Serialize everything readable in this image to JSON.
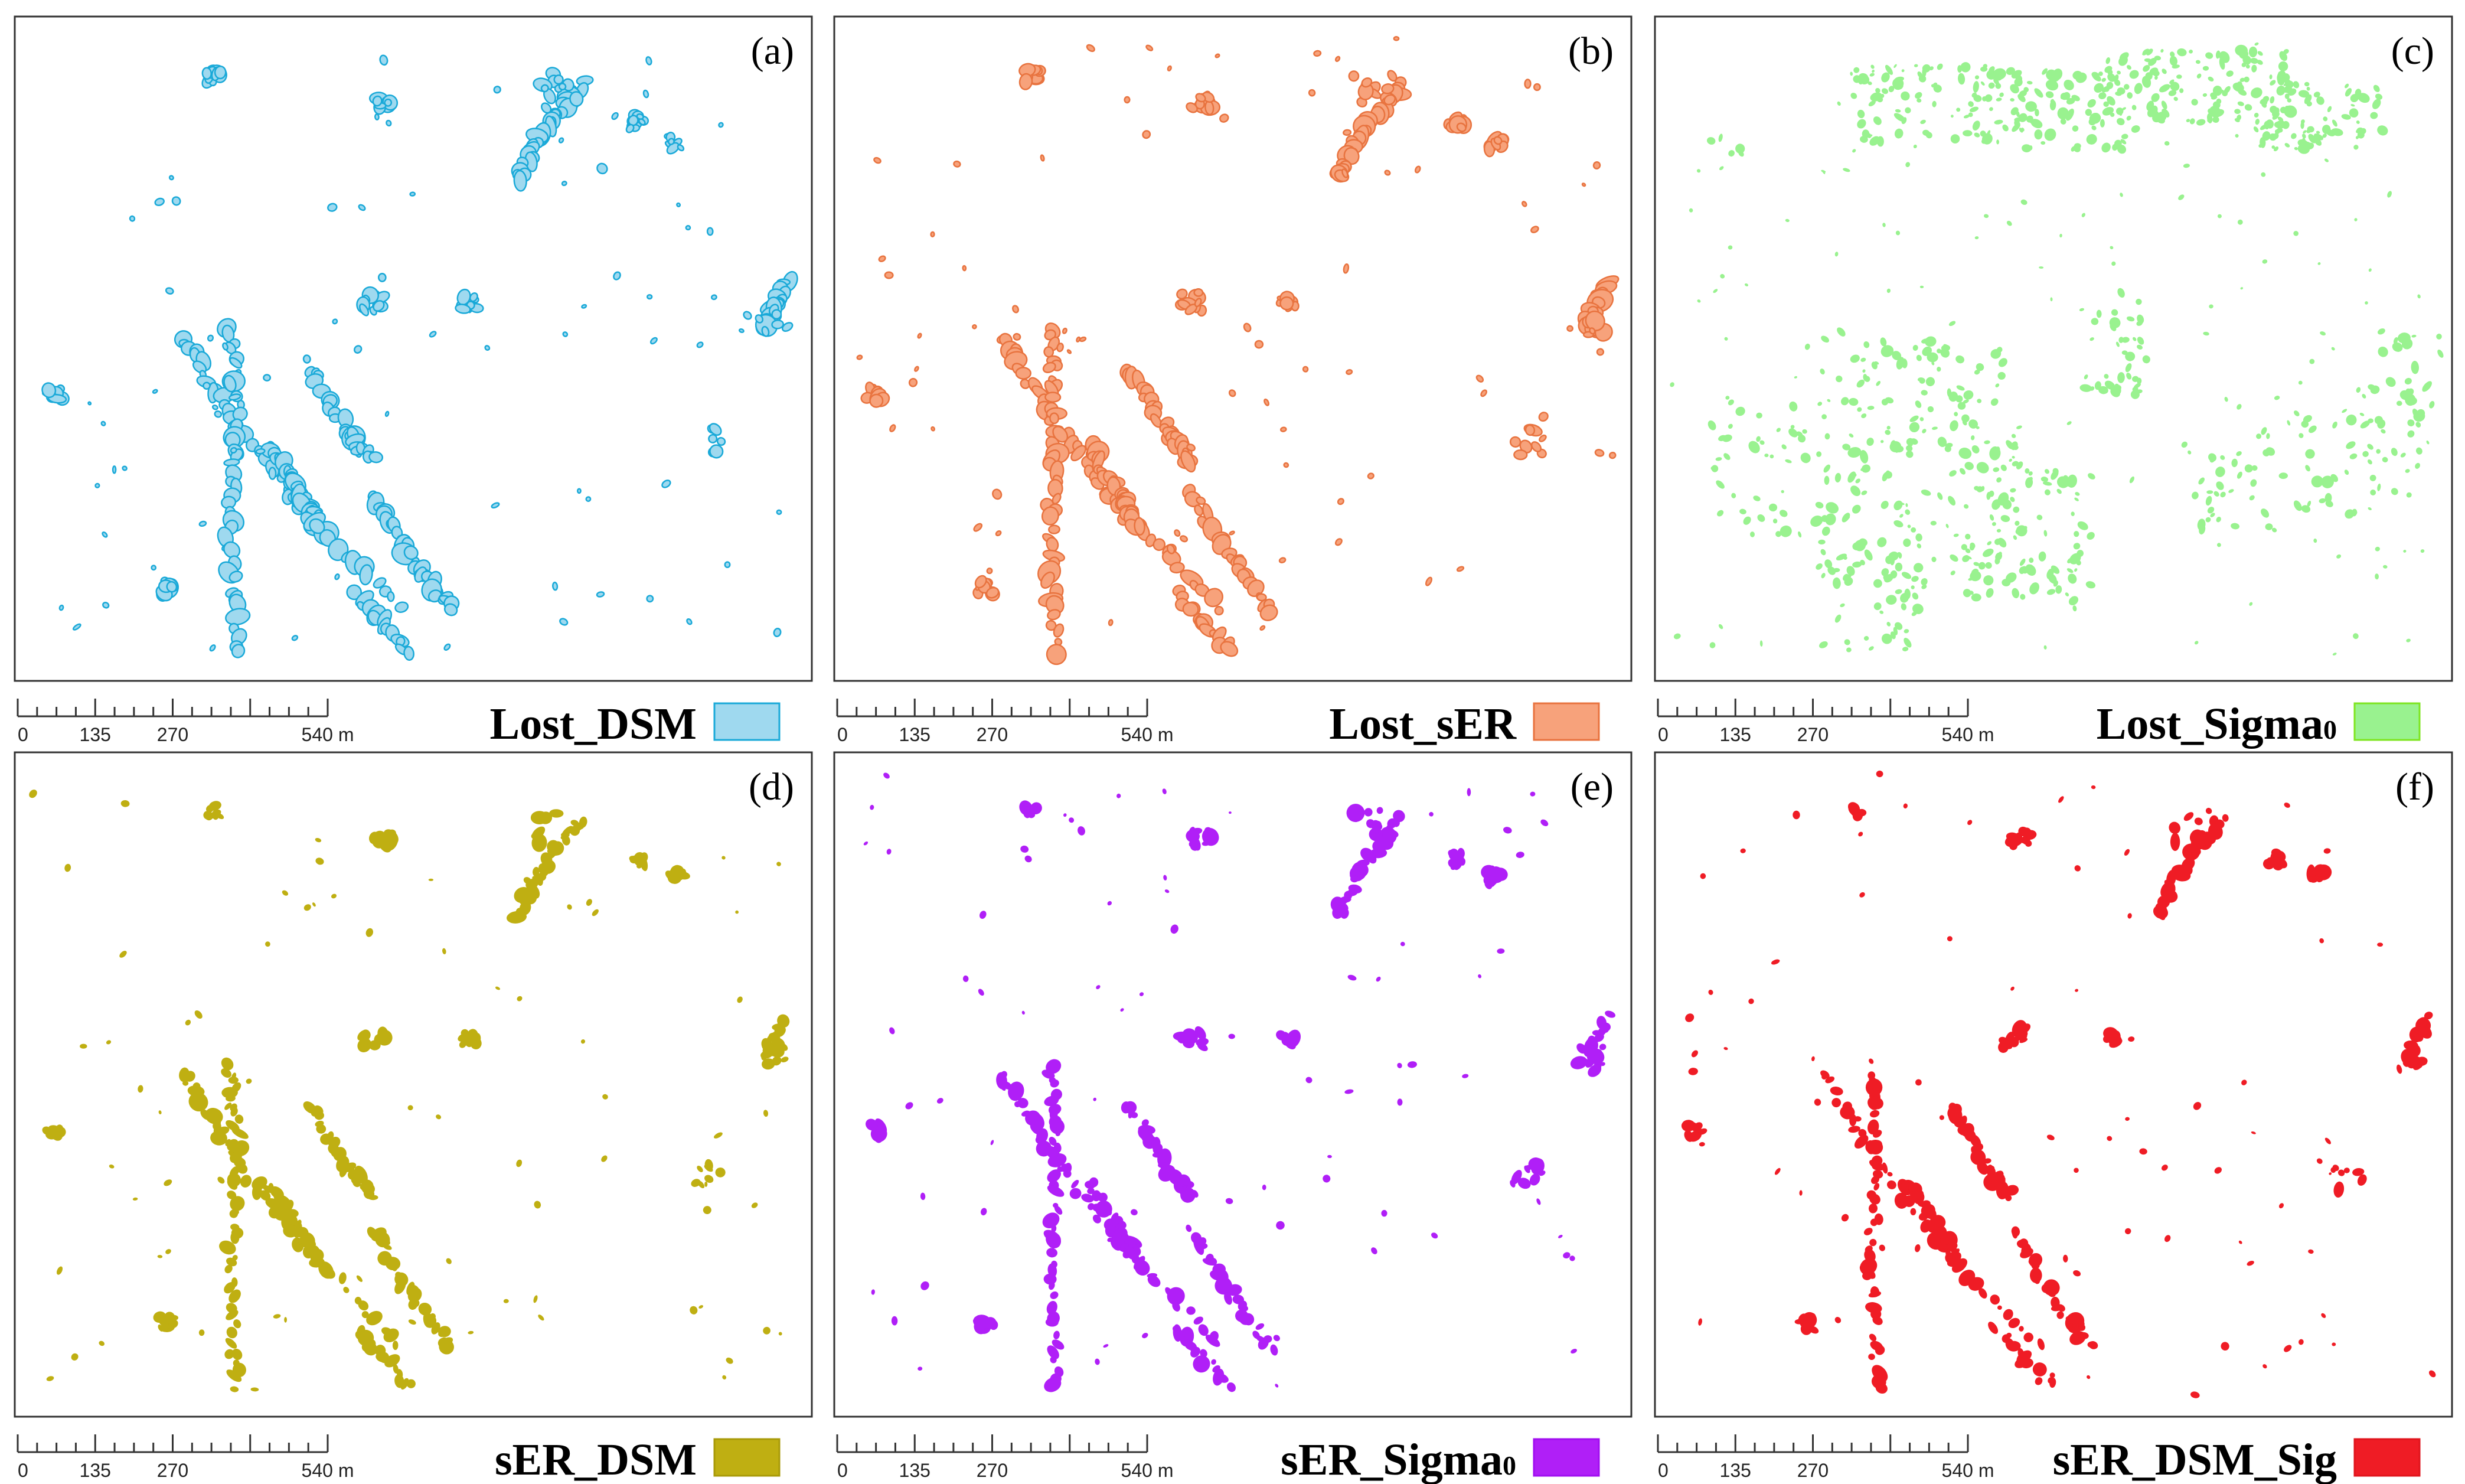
{
  "figure": {
    "panels": [
      {
        "id": "a",
        "label": "(a)",
        "legend": "Lost_DSM",
        "legend_sub": "",
        "fill": "#9fd9ef",
        "stroke": "#19a9d8",
        "style": "outline"
      },
      {
        "id": "b",
        "label": "(b)",
        "legend": "Lost_sER",
        "legend_sub": "",
        "fill": "#f7a27b",
        "stroke": "#e8733f",
        "style": "outline"
      },
      {
        "id": "c",
        "label": "(c)",
        "legend": "Lost_Sigma",
        "legend_sub": "0",
        "fill": "#99f28f",
        "stroke": "#7ee51f",
        "style": "scatter"
      },
      {
        "id": "d",
        "label": "(d)",
        "legend": "sER_DSM",
        "legend_sub": "",
        "fill": "#bfaf12",
        "stroke": "#a89a08",
        "style": "solid"
      },
      {
        "id": "e",
        "label": "(e)",
        "legend": "sER_Sigma",
        "legend_sub": "0",
        "fill": "#b01ff7",
        "stroke": "#a10ef0",
        "style": "solid"
      },
      {
        "id": "f",
        "label": "(f)",
        "legend": "sER_DSM_Sig",
        "legend_sub": "",
        "fill": "#ef1c25",
        "stroke": "#e0141c",
        "style": "solid"
      }
    ],
    "scale_bar": {
      "ticks": [
        "0",
        "135",
        "270",
        "540 m"
      ]
    }
  }
}
